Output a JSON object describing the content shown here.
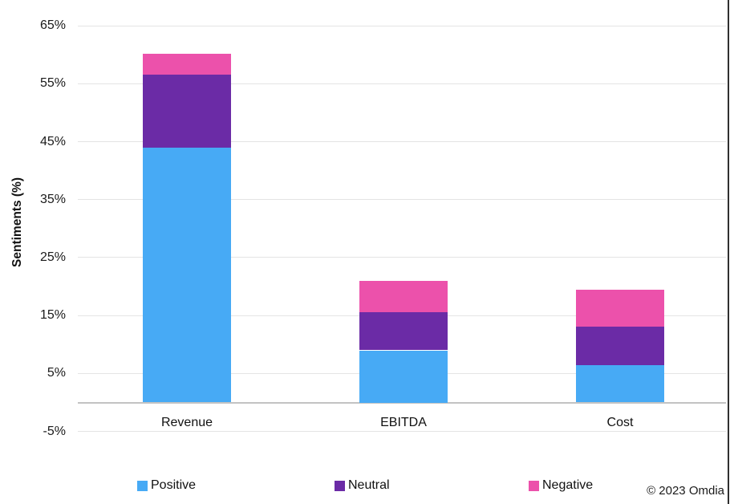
{
  "chart_data": {
    "type": "bar",
    "stacked": true,
    "title": "",
    "xlabel": "",
    "ylabel": "Sentiments (%)",
    "categories": [
      "Revenue",
      "EBITDA",
      "Cost"
    ],
    "series": [
      {
        "name": "Positive",
        "color": "#47aaf5",
        "values": [
          44.0,
          9.0,
          6.4
        ]
      },
      {
        "name": "Neutral",
        "color": "#6b2ba6",
        "values": [
          12.6,
          6.6,
          6.7
        ]
      },
      {
        "name": "Negative",
        "color": "#ec51ab",
        "values": [
          3.6,
          5.4,
          6.3
        ]
      }
    ],
    "stack_totals": [
      60.2,
      21.0,
      19.4
    ],
    "ylim": [
      -5,
      65
    ],
    "yticks": [
      65,
      55,
      45,
      35,
      25,
      15,
      5,
      -5
    ],
    "ytick_suffix": "%",
    "grid": true,
    "legend_position": "bottom",
    "colors": {
      "gridline": "#e4e4e4",
      "axis_line": "#c3c3c3",
      "text": "#1a1a1a"
    }
  },
  "footer": {
    "copyright": "© 2023 Omdia"
  }
}
